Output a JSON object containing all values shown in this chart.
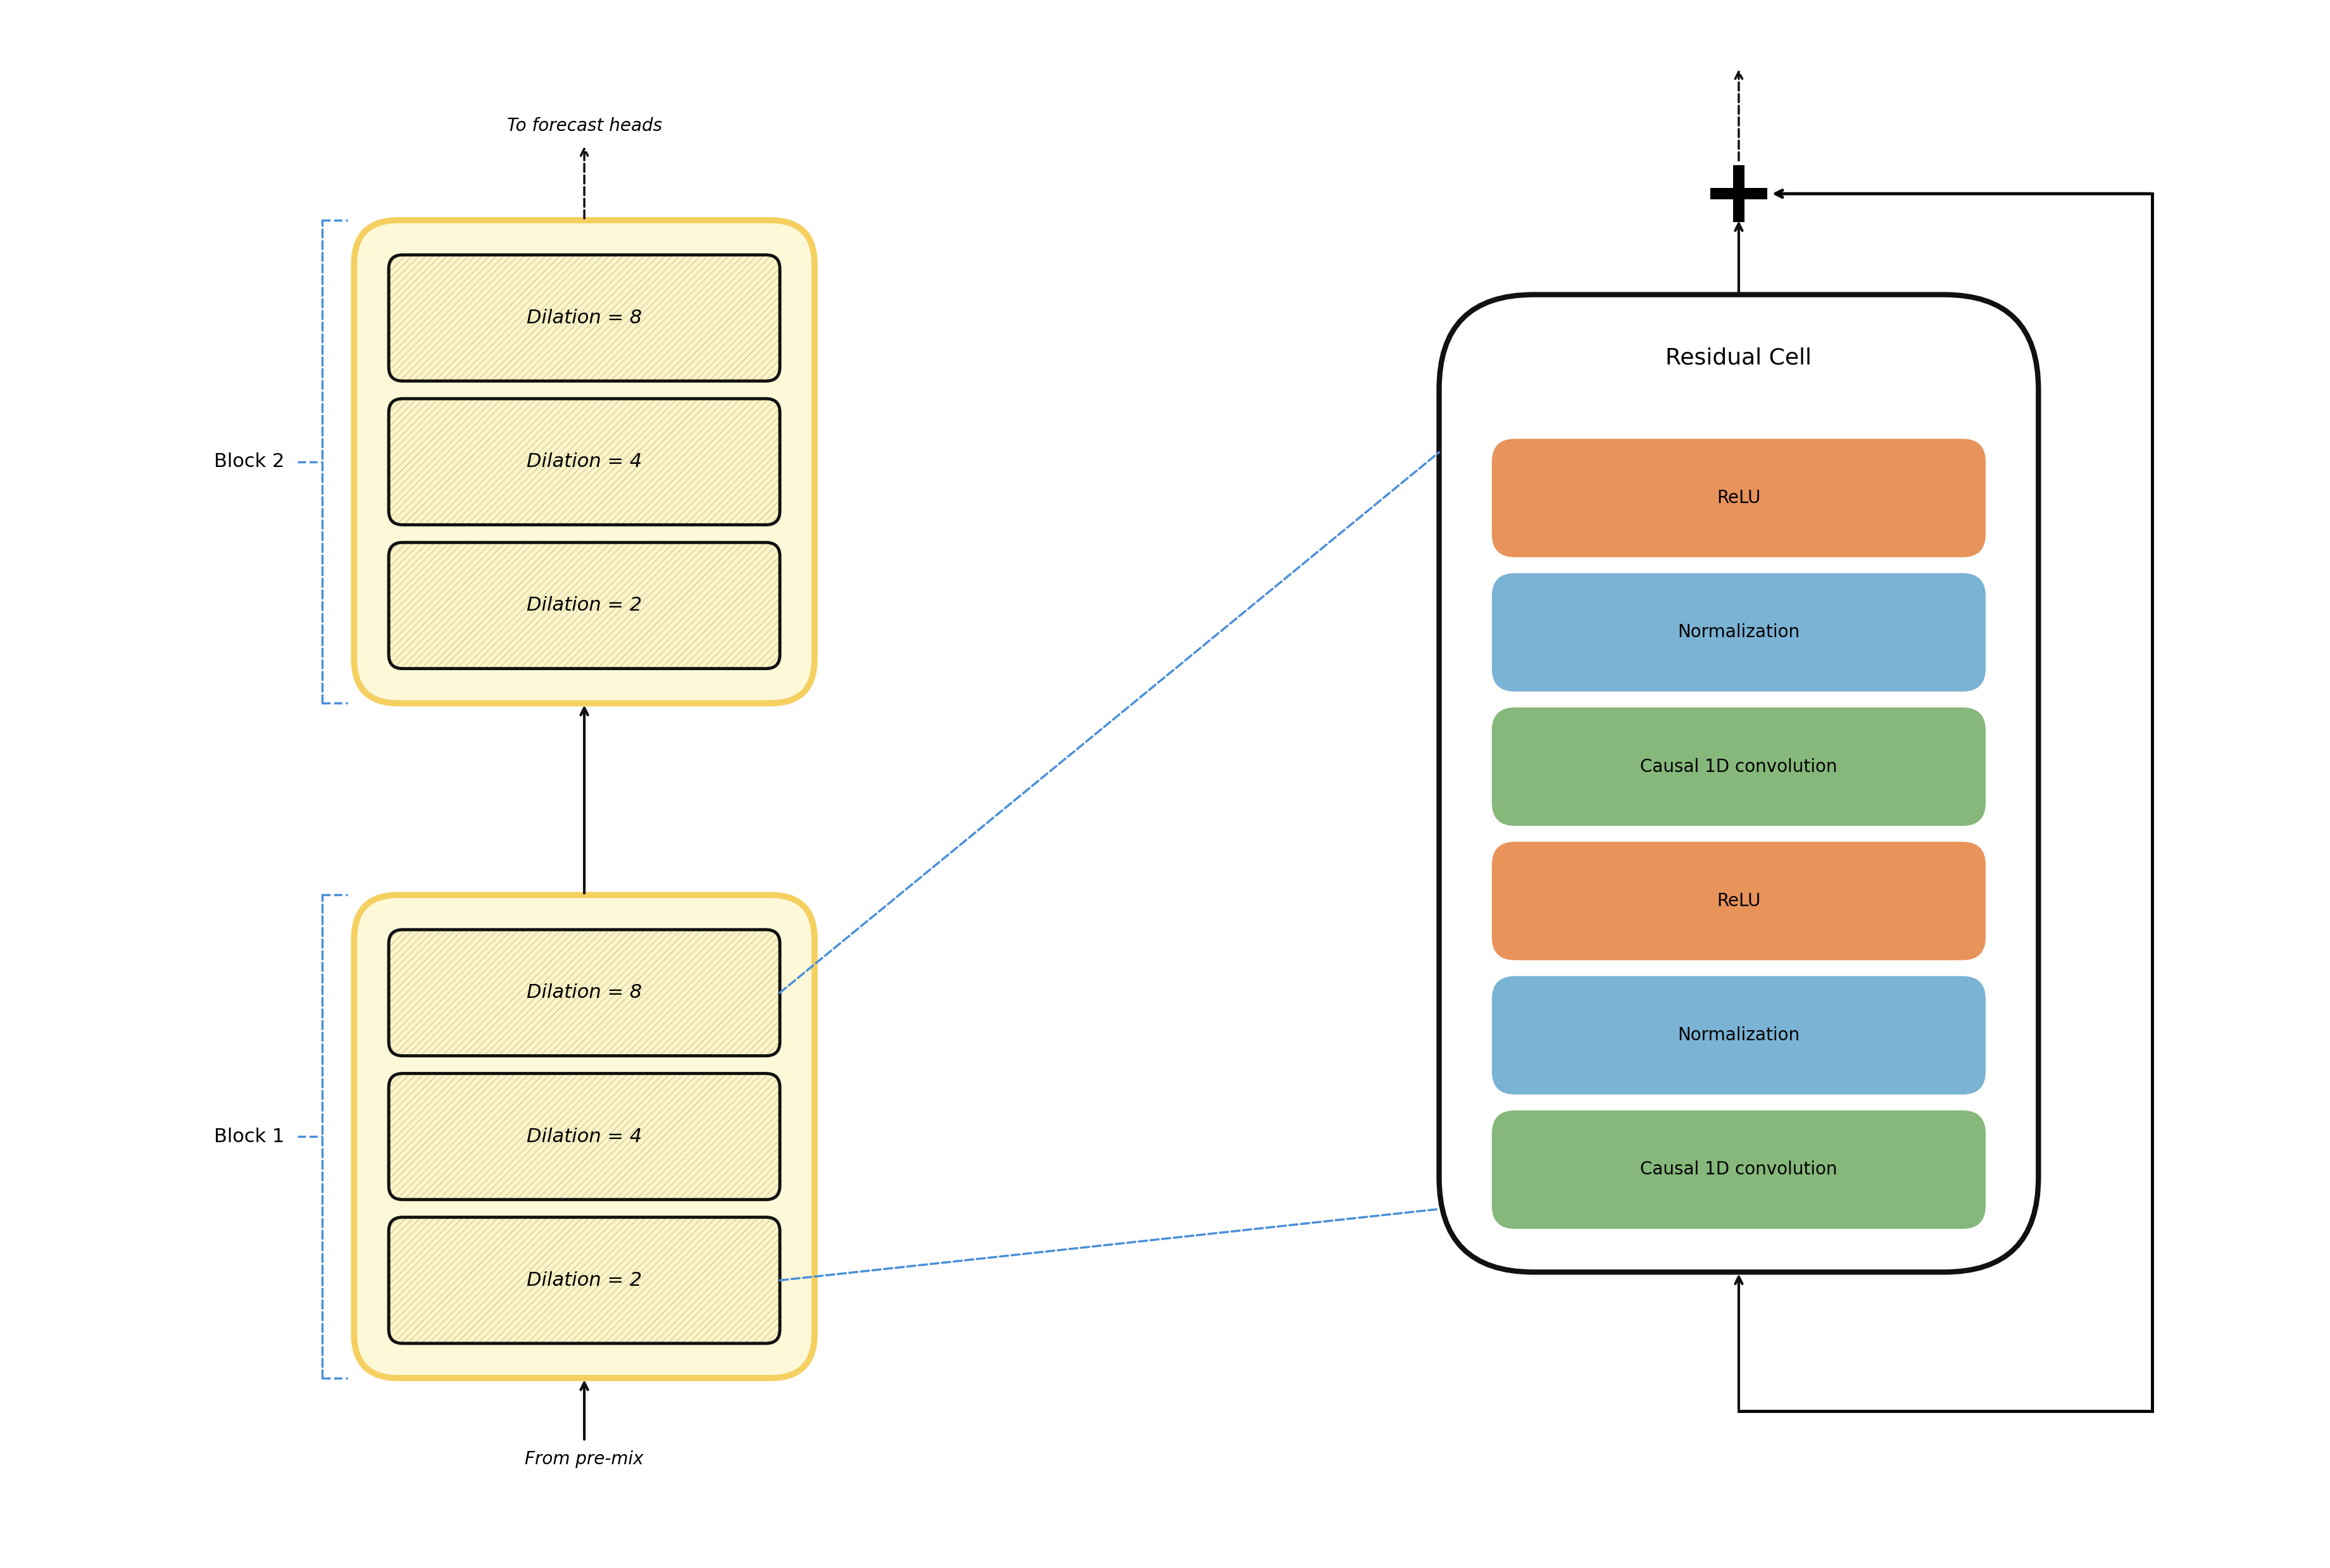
{
  "fig_width": 36.81,
  "fig_height": 24.78,
  "bg_color": "#ffffff",
  "block_fill": "#fdf8d8",
  "block_edge": "#f5d060",
  "cell_fill": "#ffffff",
  "cell_edge": "#111111",
  "relu_fill": "#e8935a",
  "norm_fill": "#7ab3d4",
  "conv_fill": "#85b87a",
  "dilation_fill": "#fdf5c8",
  "dilation_edge": "#111111",
  "dilation_labels_top": [
    "Dilation = 8",
    "Dilation = 4",
    "Dilation = 2"
  ],
  "dilation_labels_bot": [
    "Dilation = 8",
    "Dilation = 4",
    "Dilation = 2"
  ],
  "cell_layers": [
    "ReLU",
    "Normalization",
    "Causal 1D convolution",
    "ReLU",
    "Normalization",
    "Causal 1D convolution"
  ],
  "block1_label": "Block 1",
  "block2_label": "Block 2",
  "cell_title": "Residual Cell",
  "forecast_label": "To forecast heads",
  "premix_label": "From pre-mix",
  "blue_dashed": "#4a90d9",
  "arrow_color": "#111111",
  "layer_colors": {
    "ReLU": "#e8935a",
    "Normalization": "#7ab3d4",
    "Causal 1D convolution": "#85b87a"
  }
}
